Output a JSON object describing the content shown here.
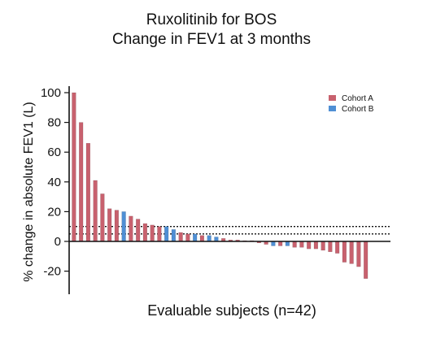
{
  "chart_data": {
    "type": "bar",
    "title": "Ruxolitinib for BOS",
    "subtitle": "Change in FEV1 at 3 months",
    "xlabel": "Evaluable subjects (n=42)",
    "ylabel": "% change in absolute FEV1 (L)",
    "ylim": [
      -35,
      102
    ],
    "yticks": [
      100,
      80,
      60,
      40,
      20,
      0,
      -20
    ],
    "reference_lines": [
      10,
      5
    ],
    "legend": {
      "position": "top-right",
      "entries": [
        {
          "name": "Cohort A",
          "color": "#c8616e"
        },
        {
          "name": "Cohort B",
          "color": "#4f8fd4"
        }
      ]
    },
    "bars": [
      {
        "value": 100,
        "cohort": "A"
      },
      {
        "value": 80,
        "cohort": "A"
      },
      {
        "value": 66,
        "cohort": "A"
      },
      {
        "value": 41,
        "cohort": "A"
      },
      {
        "value": 32,
        "cohort": "A"
      },
      {
        "value": 22,
        "cohort": "A"
      },
      {
        "value": 21,
        "cohort": "A"
      },
      {
        "value": 20,
        "cohort": "B"
      },
      {
        "value": 17,
        "cohort": "A"
      },
      {
        "value": 15,
        "cohort": "A"
      },
      {
        "value": 12,
        "cohort": "A"
      },
      {
        "value": 11,
        "cohort": "A"
      },
      {
        "value": 10,
        "cohort": "A"
      },
      {
        "value": 10,
        "cohort": "B"
      },
      {
        "value": 8,
        "cohort": "B"
      },
      {
        "value": 6,
        "cohort": "A"
      },
      {
        "value": 5,
        "cohort": "A"
      },
      {
        "value": 5,
        "cohort": "B"
      },
      {
        "value": 4,
        "cohort": "A"
      },
      {
        "value": 4,
        "cohort": "B"
      },
      {
        "value": 3,
        "cohort": "B"
      },
      {
        "value": 2,
        "cohort": "A"
      },
      {
        "value": 1,
        "cohort": "A"
      },
      {
        "value": 1,
        "cohort": "A"
      },
      {
        "value": 0.5,
        "cohort": "A"
      },
      {
        "value": 0.5,
        "cohort": "A"
      },
      {
        "value": -1,
        "cohort": "A"
      },
      {
        "value": -2,
        "cohort": "A"
      },
      {
        "value": -3,
        "cohort": "B"
      },
      {
        "value": -3,
        "cohort": "A"
      },
      {
        "value": -3,
        "cohort": "B"
      },
      {
        "value": -4,
        "cohort": "A"
      },
      {
        "value": -4,
        "cohort": "A"
      },
      {
        "value": -5,
        "cohort": "A"
      },
      {
        "value": -5,
        "cohort": "A"
      },
      {
        "value": -6,
        "cohort": "A"
      },
      {
        "value": -7,
        "cohort": "A"
      },
      {
        "value": -8,
        "cohort": "A"
      },
      {
        "value": -14,
        "cohort": "A"
      },
      {
        "value": -15,
        "cohort": "A"
      },
      {
        "value": -17,
        "cohort": "A"
      },
      {
        "value": -25,
        "cohort": "A"
      }
    ]
  }
}
